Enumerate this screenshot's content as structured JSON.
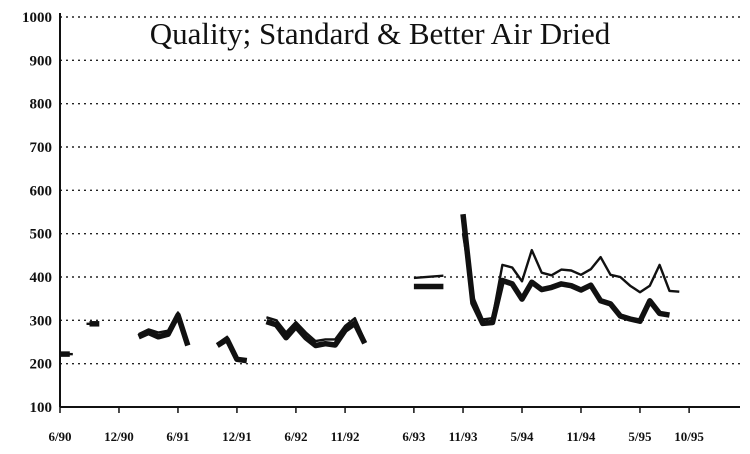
{
  "chart_data": {
    "type": "line",
    "title": "Quality; Standard & Better Air Dried",
    "xlabel": "",
    "ylabel": "",
    "ylim": [
      100,
      1000
    ],
    "yticks": [
      100,
      200,
      300,
      400,
      500,
      600,
      700,
      800,
      900,
      1000
    ],
    "xlim": [
      "1990-06",
      "1995-12"
    ],
    "xticks": [
      {
        "label": "6/90",
        "date": "1990-06"
      },
      {
        "label": "12/90",
        "date": "1990-12"
      },
      {
        "label": "6/91",
        "date": "1991-06"
      },
      {
        "label": "12/91",
        "date": "1991-12"
      },
      {
        "label": "6/92",
        "date": "1992-06"
      },
      {
        "label": "11/92",
        "date": "1992-11"
      },
      {
        "label": "6/93",
        "date": "1993-06"
      },
      {
        "label": "11/93",
        "date": "1993-11"
      },
      {
        "label": "5/94",
        "date": "1994-05"
      },
      {
        "label": "11/94",
        "date": "1994-11"
      },
      {
        "label": "5/95",
        "date": "1995-05"
      },
      {
        "label": "10/95",
        "date": "1995-10"
      }
    ],
    "grid": true,
    "series": [
      {
        "color": "#111111",
        "width": "thick",
        "segments": [
          [
            [
              "1990-06",
              222
            ],
            [
              "1990-07",
              222
            ]
          ],
          [
            [
              "1990-09",
              292
            ],
            [
              "1990-10",
              292
            ]
          ],
          [
            [
              "1991-02",
              262
            ],
            [
              "1991-03",
              272
            ],
            [
              "1991-04",
              262
            ],
            [
              "1991-05",
              268
            ],
            [
              "1991-06",
              312
            ],
            [
              "1991-07",
              242
            ]
          ],
          [
            [
              "1991-10",
              242
            ],
            [
              "1991-11",
              256
            ],
            [
              "1991-12",
              210
            ],
            [
              "1992-01",
              207
            ]
          ],
          [
            [
              "1992-03",
              297
            ],
            [
              "1992-04",
              290
            ],
            [
              "1992-05",
              260
            ],
            [
              "1992-06",
              286
            ],
            [
              "1992-07",
              260
            ],
            [
              "1992-08",
              242
            ],
            [
              "1992-09",
              246
            ],
            [
              "1992-10",
              243
            ],
            [
              "1992-11",
              277
            ],
            [
              "1992-12",
              293
            ],
            [
              "1993-01",
              247
            ]
          ],
          [
            [
              "1993-06",
              378
            ],
            [
              "1993-09",
              378
            ]
          ],
          [
            [
              "1993-11",
              545
            ],
            [
              "1993-12",
              340
            ],
            [
              "1994-01",
              293
            ],
            [
              "1994-02",
              295
            ],
            [
              "1994-03",
              392
            ],
            [
              "1994-04",
              384
            ],
            [
              "1994-05",
              349
            ],
            [
              "1994-06",
              388
            ],
            [
              "1994-07",
              371
            ],
            [
              "1994-08",
              376
            ],
            [
              "1994-09",
              384
            ],
            [
              "1994-10",
              380
            ],
            [
              "1994-11",
              370
            ],
            [
              "1994-12",
              381
            ],
            [
              "1995-01",
              345
            ],
            [
              "1995-02",
              338
            ],
            [
              "1995-03",
              310
            ],
            [
              "1995-04",
              303
            ],
            [
              "1995-05",
              298
            ],
            [
              "1995-06",
              345
            ],
            [
              "1995-07",
              316
            ],
            [
              "1995-08",
              312
            ]
          ]
        ]
      },
      {
        "color": "#111111",
        "width": "thin",
        "segments": [
          [
            [
              "1990-07",
              222
            ]
          ],
          [
            [
              "1990-09",
              292
            ]
          ],
          [
            [
              "1991-02",
              268
            ],
            [
              "1991-03",
              279
            ],
            [
              "1991-04",
              272
            ],
            [
              "1991-05",
              276
            ],
            [
              "1991-06",
              318
            ],
            [
              "1991-07",
              248
            ]
          ],
          [
            [
              "1991-10",
              246
            ],
            [
              "1991-11",
              262
            ],
            [
              "1991-12",
              214
            ]
          ],
          [
            [
              "1992-03",
              307
            ],
            [
              "1992-04",
              300
            ],
            [
              "1992-05",
              272
            ],
            [
              "1992-06",
              296
            ],
            [
              "1992-07",
              272
            ],
            [
              "1992-08",
              252
            ],
            [
              "1992-09",
              256
            ],
            [
              "1992-10",
              256
            ],
            [
              "1992-11",
              287
            ],
            [
              "1992-12",
              305
            ],
            [
              "1993-01",
              253
            ]
          ],
          [
            [
              "1993-06",
              398
            ],
            [
              "1993-09",
              403
            ]
          ],
          [
            [
              "1993-11",
              500
            ],
            [
              "1993-12",
              355
            ],
            [
              "1994-01",
              302
            ],
            [
              "1994-02",
              305
            ],
            [
              "1994-03",
              428
            ],
            [
              "1994-04",
              422
            ],
            [
              "1994-05",
              390
            ],
            [
              "1994-06",
              462
            ],
            [
              "1994-07",
              410
            ],
            [
              "1994-08",
              404
            ],
            [
              "1994-09",
              417
            ],
            [
              "1994-10",
              415
            ],
            [
              "1994-11",
              405
            ],
            [
              "1994-12",
              418
            ],
            [
              "1995-01",
              446
            ],
            [
              "1995-02",
              405
            ],
            [
              "1995-03",
              400
            ],
            [
              "1995-04",
              380
            ],
            [
              "1995-05",
              365
            ],
            [
              "1995-06",
              380
            ],
            [
              "1995-07",
              428
            ],
            [
              "1995-08",
              368
            ],
            [
              "1995-09",
              366
            ]
          ]
        ]
      }
    ]
  }
}
